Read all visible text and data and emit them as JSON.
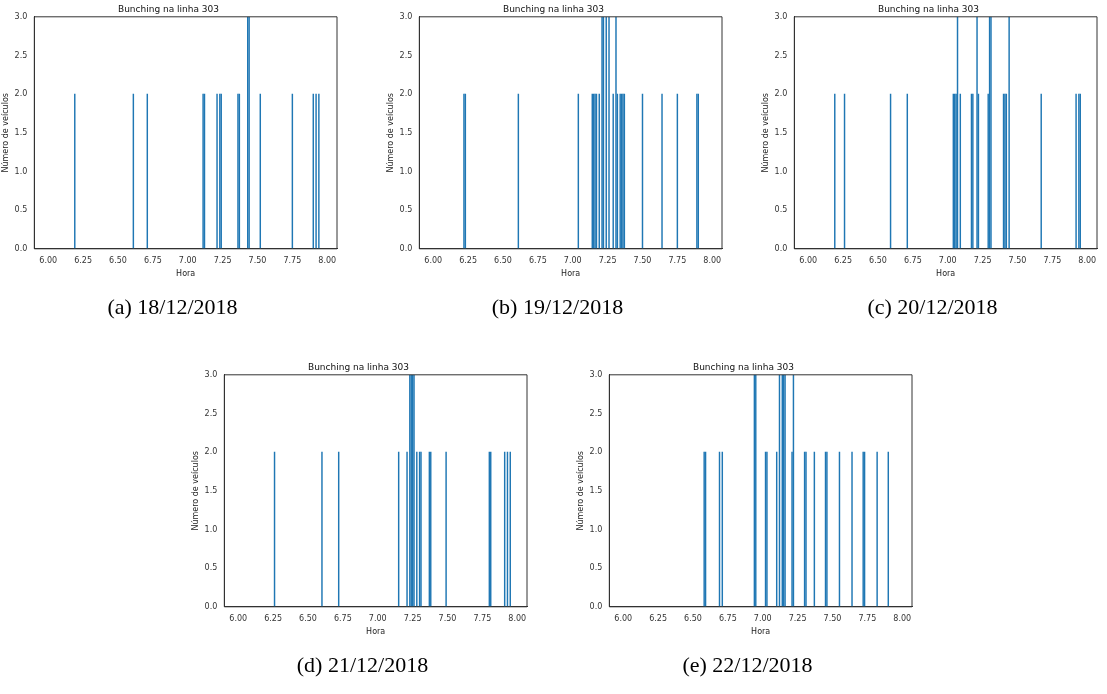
{
  "chart_data": [
    {
      "type": "bar",
      "title": "Bunching na linha 303",
      "xlabel": "Hora",
      "ylabel": "Número de veículos",
      "color": "#1f77b4",
      "grid": false,
      "annotations": [
        "(a) 18/12/2018"
      ],
      "x": [
        6.19,
        6.61,
        6.71,
        7.11,
        7.12,
        7.21,
        7.23,
        7.24,
        7.36,
        7.37,
        7.43,
        7.44,
        7.52,
        7.75,
        7.9,
        7.92,
        7.94
      ],
      "values": [
        2,
        2,
        2,
        2,
        2,
        2,
        2,
        2,
        2,
        2,
        3,
        3,
        2,
        2,
        2,
        2,
        2
      ],
      "xlim": [
        5.9,
        8.07
      ],
      "xticks": [
        {
          "value": 6,
          "label": "6.00"
        },
        {
          "value": 6.25,
          "label": "6.25"
        },
        {
          "value": 6.5,
          "label": "6.50"
        },
        {
          "value": 6.75,
          "label": "6.75"
        },
        {
          "value": 7,
          "label": "7.00"
        },
        {
          "value": 7.25,
          "label": "7.25"
        },
        {
          "value": 7.5,
          "label": "7.50"
        },
        {
          "value": 7.75,
          "label": "7.75"
        },
        {
          "value": 8,
          "label": "8.00"
        }
      ],
      "ylim": [
        0,
        3
      ],
      "yticks": [
        {
          "value": 0,
          "label": "0.0"
        },
        {
          "value": 0.5,
          "label": "0.5"
        },
        {
          "value": 1,
          "label": "1.0"
        },
        {
          "value": 1.5,
          "label": "1.5"
        },
        {
          "value": 2,
          "label": "2.0"
        },
        {
          "value": 2.5,
          "label": "2.5"
        },
        {
          "value": 3,
          "label": "3.0"
        }
      ]
    },
    {
      "type": "bar",
      "title": "Bunching na linha 303",
      "xlabel": "Hora",
      "ylabel": "Número de veículos",
      "color": "#1f77b4",
      "grid": false,
      "annotations": [
        "(b) 19/12/2018"
      ],
      "x": [
        6.22,
        6.23,
        6.61,
        7.04,
        7.14,
        7.15,
        7.16,
        7.17,
        7.19,
        7.21,
        7.22,
        7.24,
        7.26,
        7.29,
        7.31,
        7.32,
        7.34,
        7.35,
        7.36,
        7.37,
        7.5,
        7.64,
        7.75,
        7.89,
        7.9
      ],
      "values": [
        2,
        2,
        2,
        2,
        2,
        2,
        2,
        2,
        2,
        3,
        3,
        3,
        3,
        2,
        3,
        2,
        2,
        2,
        2,
        2,
        2,
        2,
        2,
        2,
        2
      ],
      "xlim": [
        5.9,
        8.07
      ],
      "xticks": [
        {
          "value": 6,
          "label": "6.00"
        },
        {
          "value": 6.25,
          "label": "6.25"
        },
        {
          "value": 6.5,
          "label": "6.50"
        },
        {
          "value": 6.75,
          "label": "6.75"
        },
        {
          "value": 7,
          "label": "7.00"
        },
        {
          "value": 7.25,
          "label": "7.25"
        },
        {
          "value": 7.5,
          "label": "7.50"
        },
        {
          "value": 7.75,
          "label": "7.75"
        },
        {
          "value": 8,
          "label": "8.00"
        }
      ],
      "ylim": [
        0,
        3
      ],
      "yticks": [
        {
          "value": 0,
          "label": "0.0"
        },
        {
          "value": 0.5,
          "label": "0.5"
        },
        {
          "value": 1,
          "label": "1.0"
        },
        {
          "value": 1.5,
          "label": "1.5"
        },
        {
          "value": 2,
          "label": "2.0"
        },
        {
          "value": 2.5,
          "label": "2.5"
        },
        {
          "value": 3,
          "label": "3.0"
        }
      ]
    },
    {
      "type": "bar",
      "title": "Bunching na linha 303",
      "xlabel": "Hora",
      "ylabel": "Número de veículos",
      "color": "#1f77b4",
      "grid": false,
      "annotations": [
        "(c) 20/12/2018"
      ],
      "x": [
        6.19,
        6.26,
        6.59,
        6.71,
        7.04,
        7.05,
        7.06,
        7.07,
        7.09,
        7.17,
        7.18,
        7.21,
        7.22,
        7.29,
        7.3,
        7.31,
        7.4,
        7.41,
        7.42,
        7.44,
        7.67,
        7.92,
        7.94,
        7.95
      ],
      "values": [
        2,
        2,
        2,
        2,
        2,
        2,
        2,
        3,
        2,
        2,
        2,
        3,
        2,
        2,
        3,
        3,
        2,
        2,
        2,
        3,
        2,
        2,
        2,
        2
      ],
      "xlim": [
        5.9,
        8.07
      ],
      "xticks": [
        {
          "value": 6,
          "label": "6.00"
        },
        {
          "value": 6.25,
          "label": "6.25"
        },
        {
          "value": 6.5,
          "label": "6.50"
        },
        {
          "value": 6.75,
          "label": "6.75"
        },
        {
          "value": 7,
          "label": "7.00"
        },
        {
          "value": 7.25,
          "label": "7.25"
        },
        {
          "value": 7.5,
          "label": "7.50"
        },
        {
          "value": 7.75,
          "label": "7.75"
        },
        {
          "value": 8,
          "label": "8.00"
        }
      ],
      "ylim": [
        0,
        3
      ],
      "yticks": [
        {
          "value": 0,
          "label": "0.0"
        },
        {
          "value": 0.5,
          "label": "0.5"
        },
        {
          "value": 1,
          "label": "1.0"
        },
        {
          "value": 1.5,
          "label": "1.5"
        },
        {
          "value": 2,
          "label": "2.0"
        },
        {
          "value": 2.5,
          "label": "2.5"
        },
        {
          "value": 3,
          "label": "3.0"
        }
      ]
    },
    {
      "type": "bar",
      "title": "Bunching na linha 303",
      "xlabel": "Hora",
      "ylabel": "Número de veículos",
      "color": "#1f77b4",
      "grid": false,
      "annotations": [
        "(d) 21/12/2018"
      ],
      "x": [
        6.26,
        6.6,
        6.72,
        7.15,
        7.21,
        7.23,
        7.24,
        7.25,
        7.26,
        7.28,
        7.3,
        7.31,
        7.37,
        7.38,
        7.49,
        7.8,
        7.81,
        7.91,
        7.93,
        7.95
      ],
      "values": [
        2,
        2,
        2,
        2,
        2,
        3,
        3,
        3,
        3,
        2,
        2,
        2,
        2,
        2,
        2,
        2,
        2,
        2,
        2,
        2
      ],
      "xlim": [
        5.9,
        8.07
      ],
      "xticks": [
        {
          "value": 6,
          "label": "6.00"
        },
        {
          "value": 6.25,
          "label": "6.25"
        },
        {
          "value": 6.5,
          "label": "6.50"
        },
        {
          "value": 6.75,
          "label": "6.75"
        },
        {
          "value": 7,
          "label": "7.00"
        },
        {
          "value": 7.25,
          "label": "7.25"
        },
        {
          "value": 7.5,
          "label": "7.50"
        },
        {
          "value": 7.75,
          "label": "7.75"
        },
        {
          "value": 8,
          "label": "8.00"
        }
      ],
      "ylim": [
        0,
        3
      ],
      "yticks": [
        {
          "value": 0,
          "label": "0.0"
        },
        {
          "value": 0.5,
          "label": "0.5"
        },
        {
          "value": 1,
          "label": "1.0"
        },
        {
          "value": 1.5,
          "label": "1.5"
        },
        {
          "value": 2,
          "label": "2.0"
        },
        {
          "value": 2.5,
          "label": "2.5"
        },
        {
          "value": 3,
          "label": "3.0"
        }
      ]
    },
    {
      "type": "bar",
      "title": "Bunching na linha 303",
      "xlabel": "Hora",
      "ylabel": "Número de veículos",
      "color": "#1f77b4",
      "grid": false,
      "annotations": [
        "(e) 22/12/2018"
      ],
      "x": [
        6.58,
        6.59,
        6.69,
        6.71,
        6.94,
        6.95,
        7.02,
        7.03,
        7.1,
        7.12,
        7.14,
        7.15,
        7.16,
        7.21,
        7.22,
        7.3,
        7.31,
        7.37,
        7.45,
        7.46,
        7.55,
        7.64,
        7.72,
        7.73,
        7.82,
        7.9
      ],
      "values": [
        2,
        2,
        2,
        2,
        3,
        3,
        2,
        2,
        2,
        3,
        3,
        3,
        3,
        2,
        3,
        2,
        2,
        2,
        2,
        2,
        2,
        2,
        2,
        2,
        2,
        2
      ],
      "xlim": [
        5.9,
        8.07
      ],
      "xticks": [
        {
          "value": 6,
          "label": "6.00"
        },
        {
          "value": 6.25,
          "label": "6.25"
        },
        {
          "value": 6.5,
          "label": "6.50"
        },
        {
          "value": 6.75,
          "label": "6.75"
        },
        {
          "value": 7,
          "label": "7.00"
        },
        {
          "value": 7.25,
          "label": "7.25"
        },
        {
          "value": 7.5,
          "label": "7.50"
        },
        {
          "value": 7.75,
          "label": "7.75"
        },
        {
          "value": 8,
          "label": "8.00"
        }
      ],
      "ylim": [
        0,
        3
      ],
      "yticks": [
        {
          "value": 0,
          "label": "0.0"
        },
        {
          "value": 0.5,
          "label": "0.5"
        },
        {
          "value": 1,
          "label": "1.0"
        },
        {
          "value": 1.5,
          "label": "1.5"
        },
        {
          "value": 2,
          "label": "2.0"
        },
        {
          "value": 2.5,
          "label": "2.5"
        },
        {
          "value": 3,
          "label": "3.0"
        }
      ]
    }
  ]
}
